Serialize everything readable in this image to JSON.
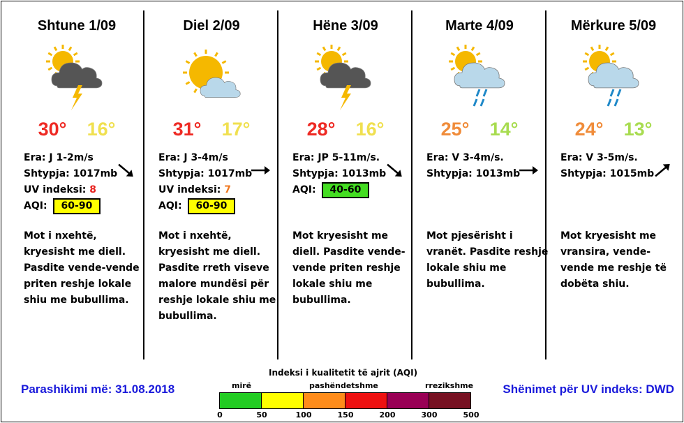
{
  "colors": {
    "hot": "#ee2a24",
    "warm": "#f0e050",
    "mild_hot": "#f08c3a",
    "mild_low": "#a8dc50",
    "footer_blue": "#1a1adb",
    "uv_red": "#e8201c",
    "uv_orange": "#f07820",
    "aqi_yellow": "#ffff00",
    "aqi_green": "#44dd22"
  },
  "days": [
    {
      "title": "Shtune 1/09",
      "icon": "sun-cloud-thunder-icon",
      "tmax": "30°",
      "tmin": "16°",
      "tmax_color": "#ee2a24",
      "tmin_color": "#f0e050",
      "wind": "Era: J 1-2m/s",
      "pressure": "Shtypja: 1017mb",
      "uv_label": "UV indeksi:",
      "uv_value": "8",
      "uv_color": "#e8201c",
      "aqi_label": "AQI:",
      "aqi_value": "60-90",
      "aqi_color": "#ffff00",
      "wind_arrow": "arrow-down-right",
      "desc": "Mot i nxehtë, kryesisht me diell.  Pasdite vende-vende priten reshje lokale shiu me bubullima."
    },
    {
      "title": "Diel 2/09",
      "icon": "sun-cloud-icon",
      "tmax": "31°",
      "tmin": "17°",
      "tmax_color": "#ee2a24",
      "tmin_color": "#f0e050",
      "wind": "Era: J 3-4m/s",
      "pressure": "Shtypja: 1017mb",
      "uv_label": "UV indeksi:",
      "uv_value": "7",
      "uv_color": "#f07820",
      "aqi_label": "AQI:",
      "aqi_value": "60-90",
      "aqi_color": "#ffff00",
      "wind_arrow": "arrow-right",
      "desc": "Mot i nxehtë, kryesisht me diell.  Pasdite rreth viseve malore mundësi për reshje lokale shiu me bubullima."
    },
    {
      "title": "Hëne 3/09",
      "icon": "sun-cloud-thunder-icon",
      "tmax": "28°",
      "tmin": "16°",
      "tmax_color": "#ee2a24",
      "tmin_color": "#f0e050",
      "wind": "Era: JP 5-11m/s.",
      "pressure": "Shtypja: 1013mb",
      "uv_label": "",
      "uv_value": "",
      "uv_color": "#000000",
      "aqi_label": "AQI:",
      "aqi_value": "40-60",
      "aqi_color": "#44dd22",
      "wind_arrow": "arrow-down-right",
      "desc": "Mot kryesisht me diell. Pasdite vende-vende priten reshje lokale shiu me bubullima."
    },
    {
      "title": "Marte 4/09",
      "icon": "sun-cloud-rain-icon",
      "tmax": "25°",
      "tmin": "14°",
      "tmax_color": "#f08c3a",
      "tmin_color": "#a8dc50",
      "wind": "Era: V 3-4m/s.",
      "pressure": "Shtypja: 1013mb",
      "uv_label": "",
      "uv_value": "",
      "uv_color": "#000000",
      "aqi_label": "",
      "aqi_value": "",
      "aqi_color": "",
      "wind_arrow": "arrow-right",
      "desc": "Mot pjesërisht i vranët. Pasdite reshje lokale shiu me bubullima."
    },
    {
      "title": "Mërkure 5/09",
      "icon": "sun-cloud-rain-icon",
      "tmax": "24°",
      "tmin": "13°",
      "tmax_color": "#f08c3a",
      "tmin_color": "#a8dc50",
      "wind": "Era: V 3-5m/s.",
      "pressure": "Shtypja: 1015mb",
      "uv_label": "",
      "uv_value": "",
      "uv_color": "#000000",
      "aqi_label": "",
      "aqi_value": "",
      "aqi_color": "",
      "wind_arrow": "arrow-up-right",
      "desc": "Mot kryesisht me vransira, vende-vende me reshje të dobëta shiu."
    }
  ],
  "footer": {
    "forecast_date": "Parashikimi më: 31.08.2018",
    "uv_note": "Shënimet për UV indeks: DWD"
  },
  "aqi_scale": {
    "title": "Indeksi i kualitetit të ajrit (AQI)",
    "labels": [
      "mirë",
      "pashëndetshme",
      "rrezikshme"
    ],
    "colors": [
      "#22cc22",
      "#ffff00",
      "#ff8c1a",
      "#ee1111",
      "#990055",
      "#771122"
    ],
    "ticks": [
      "0",
      "50",
      "100",
      "150",
      "200",
      "300",
      "500"
    ]
  }
}
